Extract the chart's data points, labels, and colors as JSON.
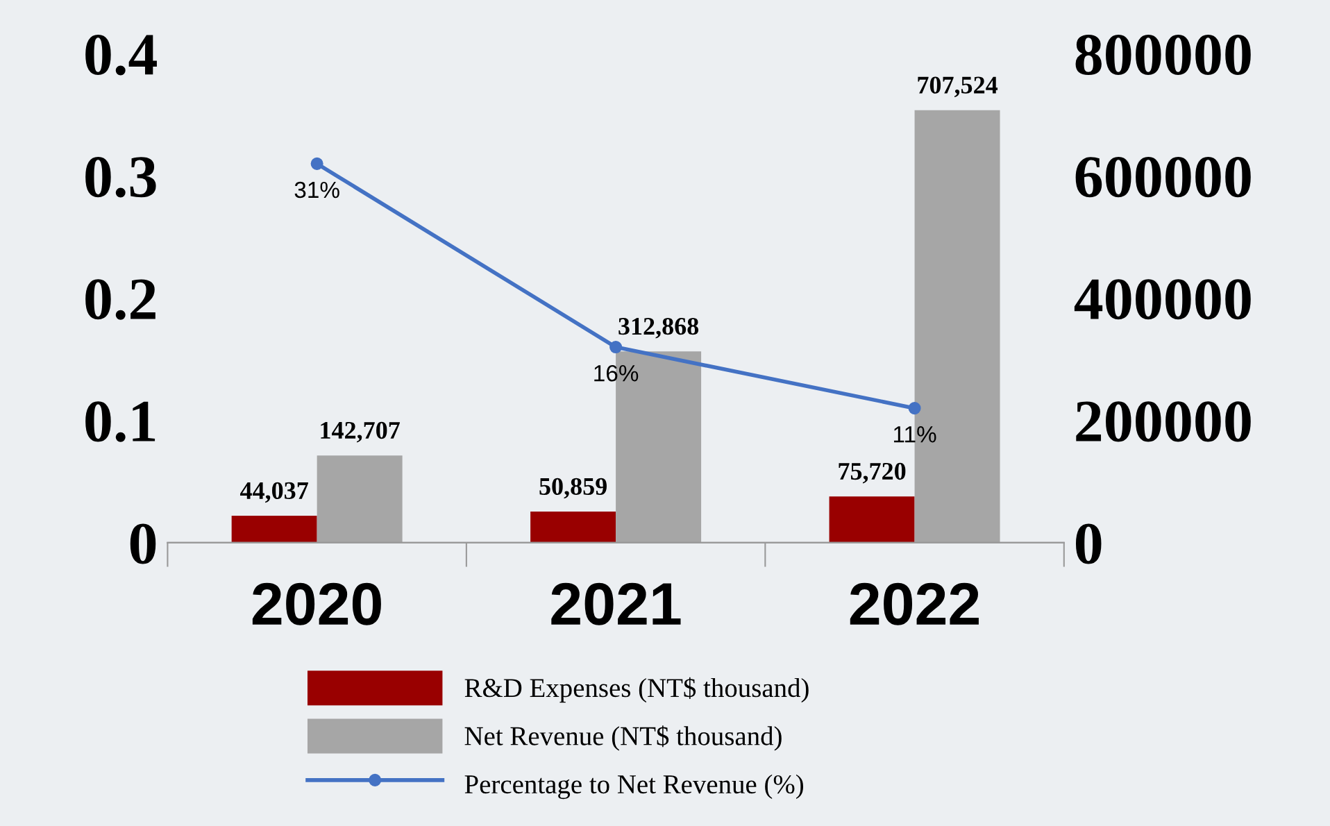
{
  "chart_data": {
    "type": "bar",
    "categories": [
      "2020",
      "2021",
      "2022"
    ],
    "series": [
      {
        "name": "R&D Expenses (NT$ thousand)",
        "axis": "y2",
        "color": "#990000",
        "values": [
          44037,
          50859,
          75720
        ],
        "value_labels": [
          "44,037",
          "50,859",
          "75,720"
        ]
      },
      {
        "name": "Net Revenue (NT$ thousand)",
        "axis": "y2",
        "color": "#a6a6a6",
        "values": [
          142707,
          312868,
          707524
        ],
        "value_labels": [
          "142,707",
          "312,868",
          "707,524"
        ]
      },
      {
        "name": "Percentage to Net Revenue (%)",
        "type": "line",
        "axis": "y",
        "color": "#4472c4",
        "marker": "circle",
        "values": [
          0.31,
          0.16,
          0.11
        ],
        "value_labels": [
          "31%",
          "16%",
          "11%"
        ]
      }
    ],
    "ylim": [
      0,
      0.4
    ],
    "yticks": [
      0,
      0.1,
      0.2,
      0.3,
      0.4
    ],
    "y2lim": [
      0,
      800000
    ],
    "y2ticks": [
      0,
      200000,
      400000,
      600000,
      800000
    ],
    "legend": "bottom"
  }
}
